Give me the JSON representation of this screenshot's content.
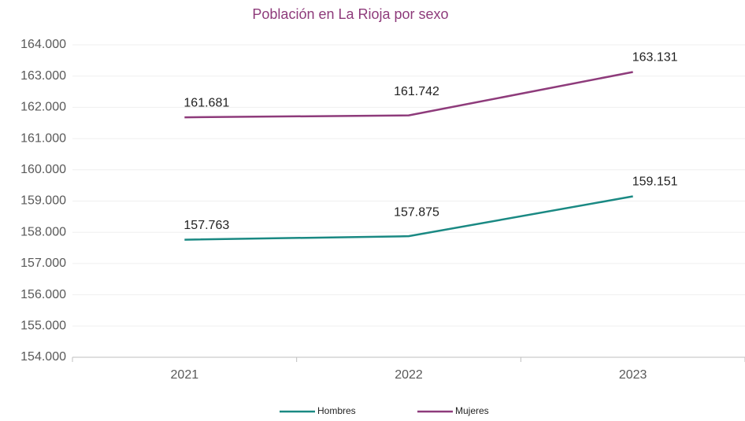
{
  "chart_data": {
    "type": "line",
    "title": "Población en La Rioja por sexo",
    "categories": [
      "2021",
      "2022",
      "2023"
    ],
    "series": [
      {
        "name": "Hombres",
        "color": "#1a8983",
        "values": [
          157763,
          157875,
          159151
        ],
        "value_labels": [
          "157.763",
          "157.875",
          "159.151"
        ]
      },
      {
        "name": "Mujeres",
        "color": "#8e3b7b",
        "values": [
          161681,
          161742,
          163131
        ],
        "value_labels": [
          "161.681",
          "161.742",
          "163.131"
        ]
      }
    ],
    "ylim": [
      154000,
      164000
    ],
    "yticks": [
      {
        "value": 154000,
        "label": "154.000"
      },
      {
        "value": 155000,
        "label": "155.000"
      },
      {
        "value": 156000,
        "label": "156.000"
      },
      {
        "value": 157000,
        "label": "157.000"
      },
      {
        "value": 158000,
        "label": "158.000"
      },
      {
        "value": 159000,
        "label": "159.000"
      },
      {
        "value": 160000,
        "label": "160.000"
      },
      {
        "value": 161000,
        "label": "161.000"
      },
      {
        "value": 162000,
        "label": "162.000"
      },
      {
        "value": 163000,
        "label": "163.000"
      },
      {
        "value": 164000,
        "label": "164.000"
      }
    ],
    "grid": true,
    "legend": "bottom"
  }
}
